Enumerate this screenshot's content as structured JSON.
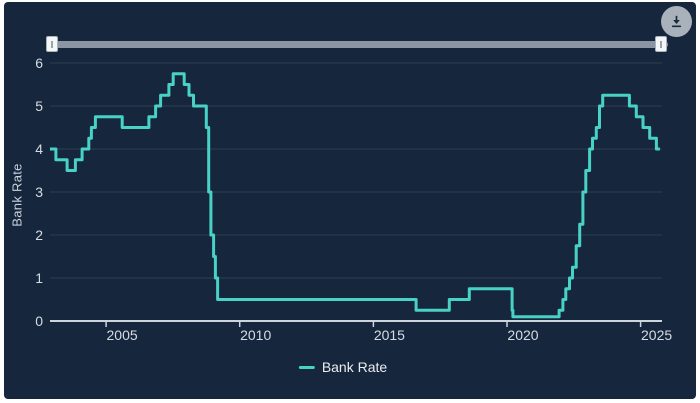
{
  "page": {
    "background": "#ffffff"
  },
  "card": {
    "background": "#16263d"
  },
  "toolbar": {
    "download_button": {
      "icon": "download-icon",
      "circle_color": "#a9b2ba",
      "icon_color": "#1a2940"
    }
  },
  "range_slider": {
    "track_color": "#8b95a3",
    "handle_color": "#f4f6f8",
    "handles": [
      "min",
      "max"
    ]
  },
  "colors": {
    "grid": "#2e4054",
    "axis": "#ccd4dc",
    "tick_label": "#d6dce3",
    "axis_title": "#c9d3dd",
    "legend_text": "#e9edf0",
    "series": "#48d1c5"
  },
  "chart_data": {
    "type": "line",
    "step": true,
    "title": "",
    "xlabel": "",
    "ylabel": "Bank Rate",
    "xlim": [
      2002.9,
      2025.8
    ],
    "ylim": [
      0,
      6
    ],
    "xticks": [
      2005,
      2010,
      2015,
      2020,
      2025
    ],
    "yticks": [
      0,
      1,
      2,
      3,
      4,
      5,
      6
    ],
    "grid": true,
    "legend_position": "bottom",
    "series": [
      {
        "name": "Bank Rate",
        "color": "#48d1c5",
        "points": [
          [
            2002.9,
            4.0
          ],
          [
            2003.12,
            3.75
          ],
          [
            2003.54,
            3.5
          ],
          [
            2003.85,
            3.75
          ],
          [
            2004.1,
            4.0
          ],
          [
            2004.35,
            4.25
          ],
          [
            2004.45,
            4.5
          ],
          [
            2004.6,
            4.75
          ],
          [
            2005.6,
            4.5
          ],
          [
            2006.6,
            4.75
          ],
          [
            2006.85,
            5.0
          ],
          [
            2007.04,
            5.25
          ],
          [
            2007.35,
            5.5
          ],
          [
            2007.51,
            5.75
          ],
          [
            2007.92,
            5.5
          ],
          [
            2008.1,
            5.25
          ],
          [
            2008.27,
            5.0
          ],
          [
            2008.75,
            4.5
          ],
          [
            2008.84,
            3.0
          ],
          [
            2008.92,
            2.0
          ],
          [
            2009.02,
            1.5
          ],
          [
            2009.09,
            1.0
          ],
          [
            2009.17,
            0.5
          ],
          [
            2016.6,
            0.25
          ],
          [
            2017.84,
            0.5
          ],
          [
            2018.59,
            0.75
          ],
          [
            2020.19,
            0.25
          ],
          [
            2020.22,
            0.1
          ],
          [
            2021.95,
            0.25
          ],
          [
            2022.09,
            0.5
          ],
          [
            2022.2,
            0.75
          ],
          [
            2022.34,
            1.0
          ],
          [
            2022.45,
            1.25
          ],
          [
            2022.59,
            1.75
          ],
          [
            2022.72,
            2.25
          ],
          [
            2022.84,
            3.0
          ],
          [
            2022.95,
            3.5
          ],
          [
            2023.09,
            4.0
          ],
          [
            2023.2,
            4.25
          ],
          [
            2023.34,
            4.5
          ],
          [
            2023.46,
            5.0
          ],
          [
            2023.58,
            5.25
          ],
          [
            2024.58,
            5.0
          ],
          [
            2024.84,
            4.75
          ],
          [
            2025.09,
            4.5
          ],
          [
            2025.34,
            4.25
          ],
          [
            2025.59,
            4.0
          ],
          [
            2025.72,
            4.0
          ]
        ]
      }
    ]
  }
}
